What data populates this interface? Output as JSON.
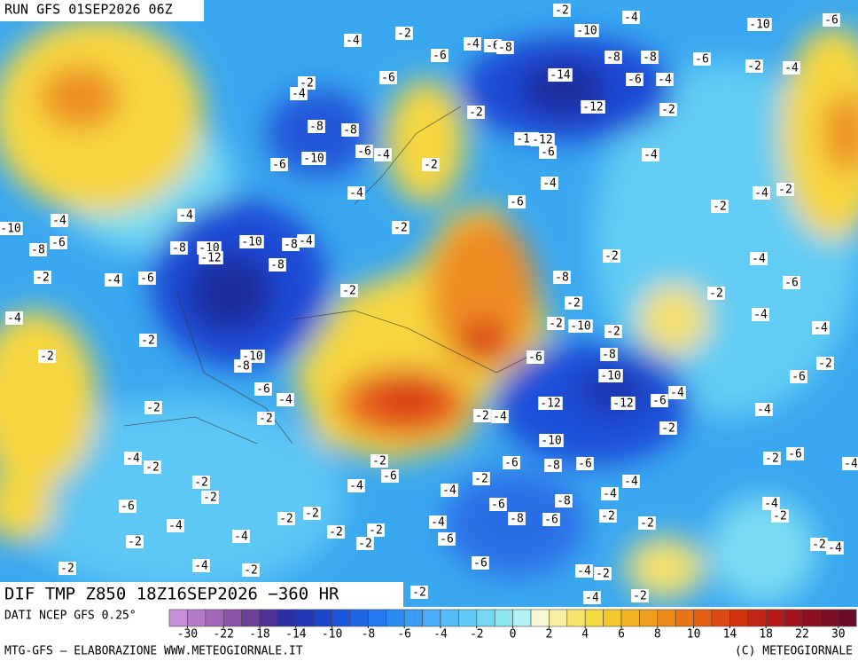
{
  "header": {
    "run": "RUN GFS 01SEP2026 06Z",
    "field": "DIF TMP Z850 18Z16SEP2026 −360 HR"
  },
  "footer": {
    "source": "DATI NCEP GFS 0.25°",
    "credits": "MTG-GFS — ELABORAZIONE WWW.METEOGIORNALE.IT",
    "copyright": "(C) METEOGIORNALE"
  },
  "colorbar": {
    "ticks": [
      -30,
      -22,
      -18,
      -14,
      -10,
      -8,
      -6,
      -4,
      -2,
      0,
      2,
      4,
      6,
      8,
      10,
      14,
      18,
      22,
      30
    ],
    "colors": [
      "#c890d8",
      "#b67cc8",
      "#a468b8",
      "#8c52a8",
      "#6e3f98",
      "#4f2e96",
      "#2b2fa0",
      "#1e38b8",
      "#1a46cc",
      "#1c56dc",
      "#1e66e6",
      "#2278ee",
      "#2a8af2",
      "#3a9cf4",
      "#48acf6",
      "#56bcf6",
      "#62caf4",
      "#74d8f2",
      "#8ee4f0",
      "#b2f0f2",
      "#fafad2",
      "#f8f0a0",
      "#f8e46c",
      "#f6d840",
      "#f4c82c",
      "#f2b424",
      "#f09e1e",
      "#ee8a1a",
      "#ea7418",
      "#e45e16",
      "#dc4814",
      "#d23412",
      "#c42414",
      "#b41a1a",
      "#a0141e",
      "#8c1022",
      "#7a0e24",
      "#6a0c26"
    ]
  },
  "map": {
    "contour_labels": [
      -2,
      -4,
      -10,
      -6,
      -4,
      -2,
      -4,
      -6,
      -8,
      -10,
      -6,
      -8,
      -8,
      -6,
      -2,
      -4,
      -2,
      -4,
      -6,
      -14,
      -6,
      -4,
      -12,
      -2,
      -2,
      -8,
      -8,
      -10,
      -12,
      -6,
      -6,
      -4,
      -10,
      -6,
      -2,
      -4,
      -4,
      -4,
      -4,
      -2,
      -6,
      -4,
      -4,
      -10,
      -6,
      -8,
      -2,
      -2,
      -10,
      -10,
      -8,
      -4,
      -8,
      -12,
      -8,
      -2,
      -4,
      -2,
      -4,
      -6,
      -8,
      -2,
      -6,
      -2,
      -2,
      -4,
      -4,
      -2,
      -10,
      -2,
      -4,
      -2,
      -2,
      -10,
      -8,
      -6,
      -8,
      -2,
      -6,
      -6,
      -4,
      -10,
      -4,
      -6,
      -2,
      -2,
      -4,
      -12,
      -12,
      -4,
      -2,
      -2,
      -10,
      -4,
      -2,
      -2,
      -6,
      -8,
      -6,
      -2,
      -6,
      -4,
      -6,
      -2,
      -2,
      -4,
      -4,
      -4,
      -4,
      -2,
      -6,
      -6,
      -8,
      -4,
      -2,
      -2,
      -8,
      -6,
      -2,
      -2,
      -4,
      -4,
      -2,
      -2,
      -2,
      -4,
      -2,
      -6,
      -2,
      -2,
      -4,
      -4,
      -2,
      -6,
      -2,
      -4,
      -2,
      -2,
      -4,
      -2
    ]
  }
}
